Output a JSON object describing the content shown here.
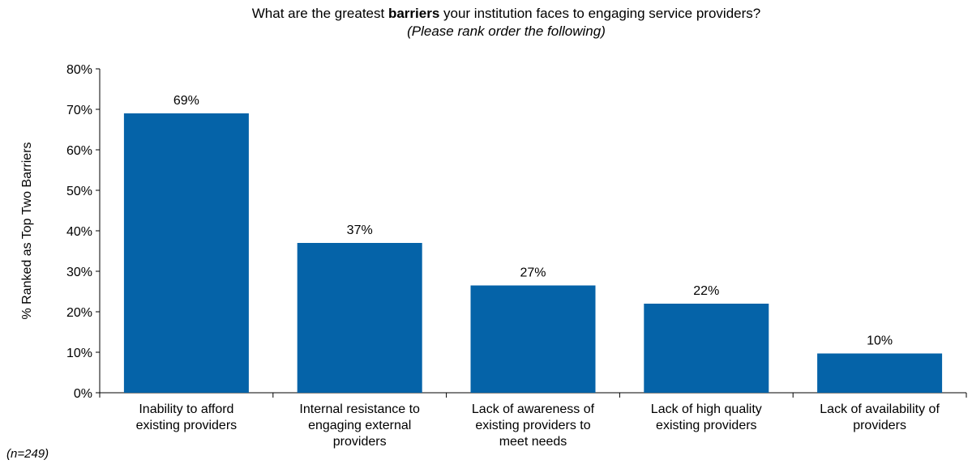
{
  "title": {
    "before": "What are the greatest ",
    "bold": "barriers",
    "after": " your institution faces to engaging service providers?",
    "subtitle": "(Please rank order the following)"
  },
  "note": "(n=249)",
  "colors": {
    "bar": "#0563a8",
    "axis": "#000000"
  },
  "chart_data": {
    "type": "bar",
    "ylabel": "% Ranked as Top Two Barriers",
    "xlabel": "",
    "ylim": [
      0,
      80
    ],
    "yticks": [
      "0%",
      "10%",
      "20%",
      "30%",
      "40%",
      "50%",
      "60%",
      "70%",
      "80%"
    ],
    "categories": [
      [
        "Inability to afford",
        "existing providers"
      ],
      [
        "Internal resistance to",
        "engaging external",
        "providers"
      ],
      [
        "Lack of awareness of",
        "existing providers to",
        "meet needs"
      ],
      [
        "Lack of high quality",
        "existing providers"
      ],
      [
        "Lack of availability of",
        "providers"
      ]
    ],
    "values": [
      69,
      37,
      26.5,
      22,
      9.7
    ],
    "data_labels": [
      "69%",
      "37%",
      "27%",
      "22%",
      "10%"
    ],
    "grid": false,
    "legend": "none"
  }
}
